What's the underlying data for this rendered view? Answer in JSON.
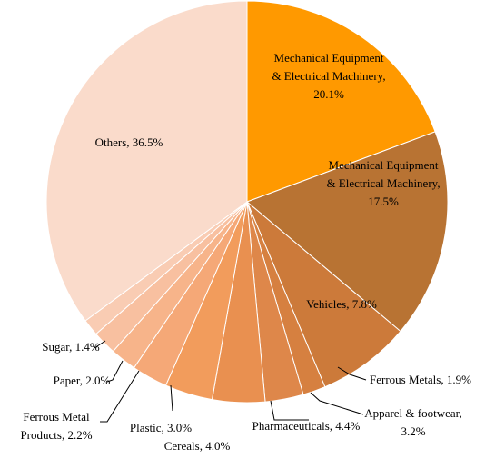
{
  "chart_data": {
    "type": "pie",
    "values": [
      20.1,
      17.5,
      7.8,
      1.9,
      3.2,
      4.4,
      4.0,
      3.0,
      2.2,
      2.0,
      1.4,
      36.5
    ],
    "value_labels": [
      [
        "Mechanical Equipment",
        "& Electrical Machinery,",
        "20.1%"
      ],
      [
        "Mechanical Equipment",
        "& Electrical Machinery,",
        "17.5%"
      ],
      [
        "Vehicles, 7.8%"
      ],
      [
        "Ferrous Metals, 1.9%"
      ],
      [
        "Apparel & footwear,",
        "3.2%"
      ],
      [
        "Pharmaceuticals, 4.4%"
      ],
      [
        "Cereals, 4.0%"
      ],
      [
        "Plastic, 3.0%"
      ],
      [
        "Ferrous Metal",
        "Products, 2.2%"
      ],
      [
        "Paper, 2.0%"
      ],
      [
        "Sugar, 1.4%"
      ],
      [
        "Others, 36.5%"
      ]
    ],
    "colors": [
      "#FF9900",
      "#B87333",
      "#CC7A3A",
      "#D68040",
      "#DE874A",
      "#E99050",
      "#F29C5C",
      "#F5A877",
      "#F7B48A",
      "#F8C0A0",
      "#F9CCB3",
      "#FADBCB"
    ]
  }
}
